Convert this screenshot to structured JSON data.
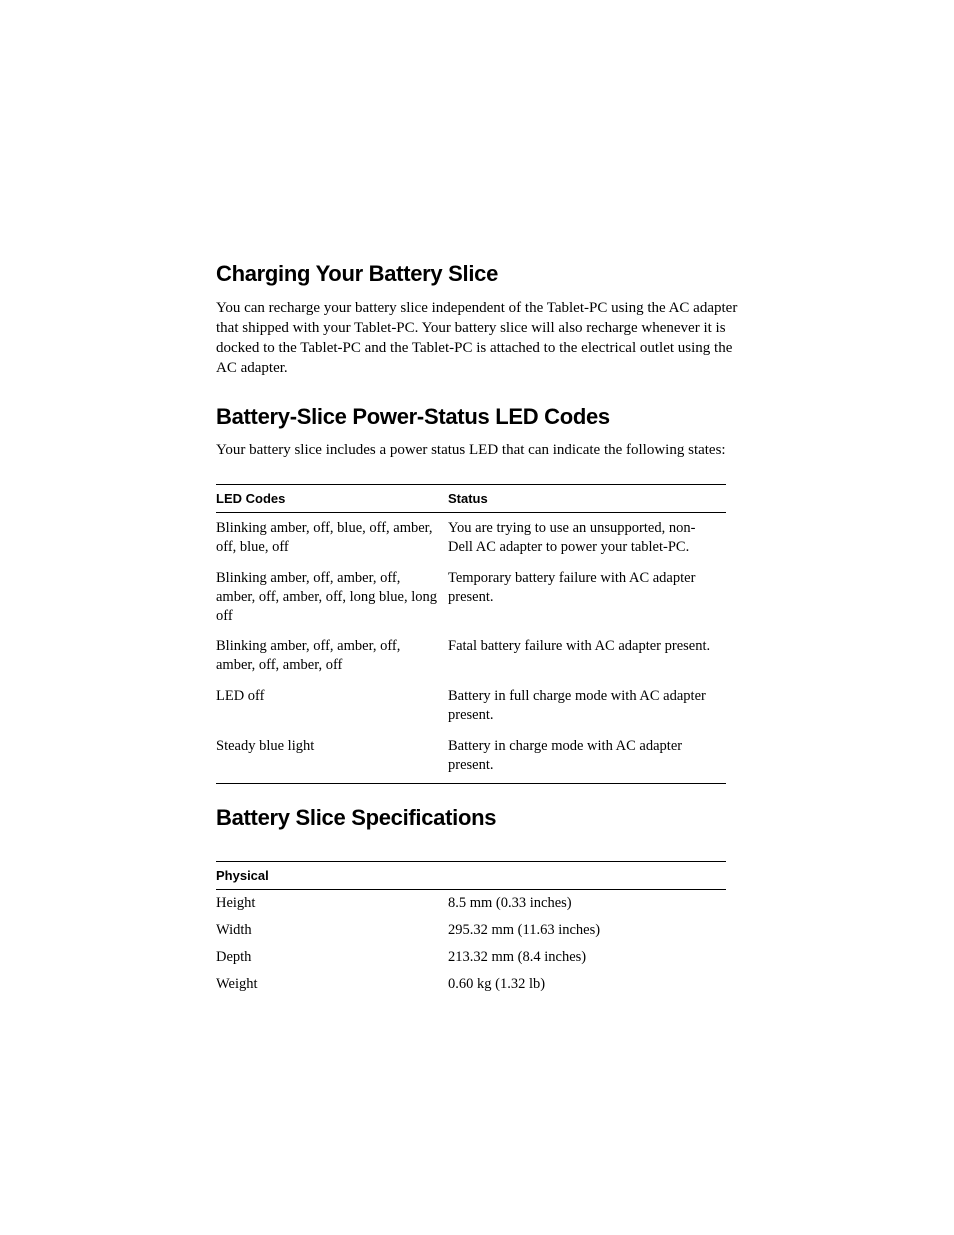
{
  "section1": {
    "heading": "Charging Your Battery Slice",
    "paragraph": "You can recharge your battery slice independent of the Tablet-PC using the AC adapter that shipped with your Tablet-PC. Your battery slice will also recharge whenever it is docked to the Tablet-PC and the Tablet-PC is attached to the electrical outlet using the AC adapter."
  },
  "section2": {
    "heading": "Battery-Slice Power-Status LED Codes",
    "paragraph": "Your battery slice includes a power status LED that can indicate the following states:",
    "table": {
      "header_left": "LED Codes",
      "header_right": "Status",
      "rows": [
        {
          "code": "Blinking amber, off, blue, off, amber, off, blue, off",
          "status": "You are trying to use an unsupported, non-Dell AC adapter to power your tablet-PC."
        },
        {
          "code": "Blinking amber, off, amber, off, amber, off, amber, off, long blue, long off",
          "status": "Temporary battery failure with AC adapter present."
        },
        {
          "code": "Blinking amber, off, amber, off, amber, off, amber, off",
          "status": "Fatal battery failure with AC adapter present."
        },
        {
          "code": "LED off",
          "status": "Battery in full charge mode with AC adapter present."
        },
        {
          "code": "Steady blue light",
          "status": "Battery in charge mode with AC adapter present."
        }
      ]
    }
  },
  "section3": {
    "heading": "Battery Slice Specifications",
    "table": {
      "header": "Physical",
      "rows": [
        {
          "k": "Height",
          "v": "8.5 mm (0.33 inches)"
        },
        {
          "k": "Width",
          "v": "295.32 mm (11.63 inches)"
        },
        {
          "k": "Depth",
          "v": "213.32 mm (8.4 inches)"
        },
        {
          "k": "Weight",
          "v": "0.60 kg (1.32 lb)"
        }
      ]
    }
  }
}
